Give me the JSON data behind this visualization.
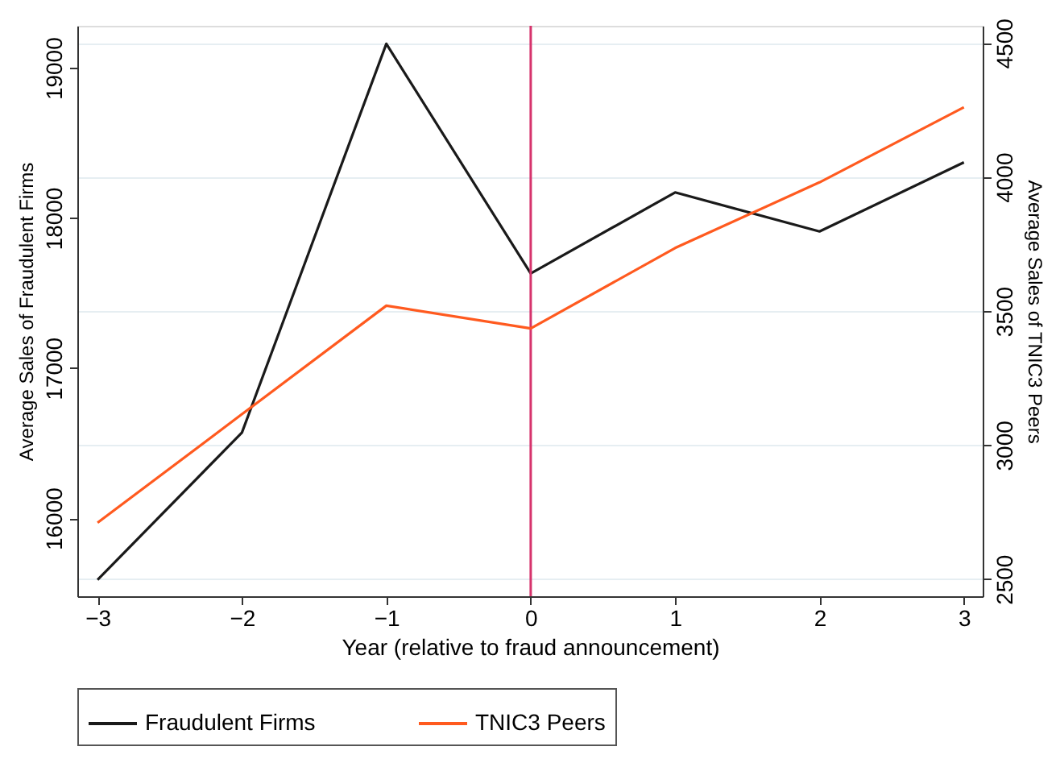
{
  "chart_data": {
    "type": "line",
    "xlabel": "Year (relative to fraud announcement)",
    "ylabel": "Average Sales of Fraudulent Firms",
    "y2label": "Average Sales of TNIC3 Peers",
    "x": [
      -3,
      -2,
      -1,
      0,
      1,
      2,
      3
    ],
    "series": [
      {
        "name": "Fraudulent Firms",
        "color": "#1a1a1a",
        "values": [
          15590,
          16570,
          19160,
          17630,
          18170,
          17910,
          18370
        ]
      },
      {
        "name": "TNIC3 Peers",
        "color": "#ff5a1f",
        "axis": "y2",
        "values": [
          2710,
          3115,
          3520,
          3435,
          3735,
          3980,
          4260
        ]
      }
    ],
    "xlim": [
      -3.14,
      3.13
    ],
    "xticks": [
      -3,
      -2,
      -1,
      0,
      1,
      2,
      3
    ],
    "ylim": [
      15480,
      19280
    ],
    "yticks": [
      16000,
      17000,
      18000,
      19000
    ],
    "y2lim": [
      2436,
      4564
    ],
    "y2ticks": [
      2500,
      3000,
      3500,
      4000,
      4500
    ],
    "ref_lines": [
      {
        "axis": "x",
        "value": 0,
        "color": "#d6336c"
      }
    ],
    "grid": "y2",
    "legend": "bottom",
    "marker": "none",
    "line_style": "solid"
  }
}
